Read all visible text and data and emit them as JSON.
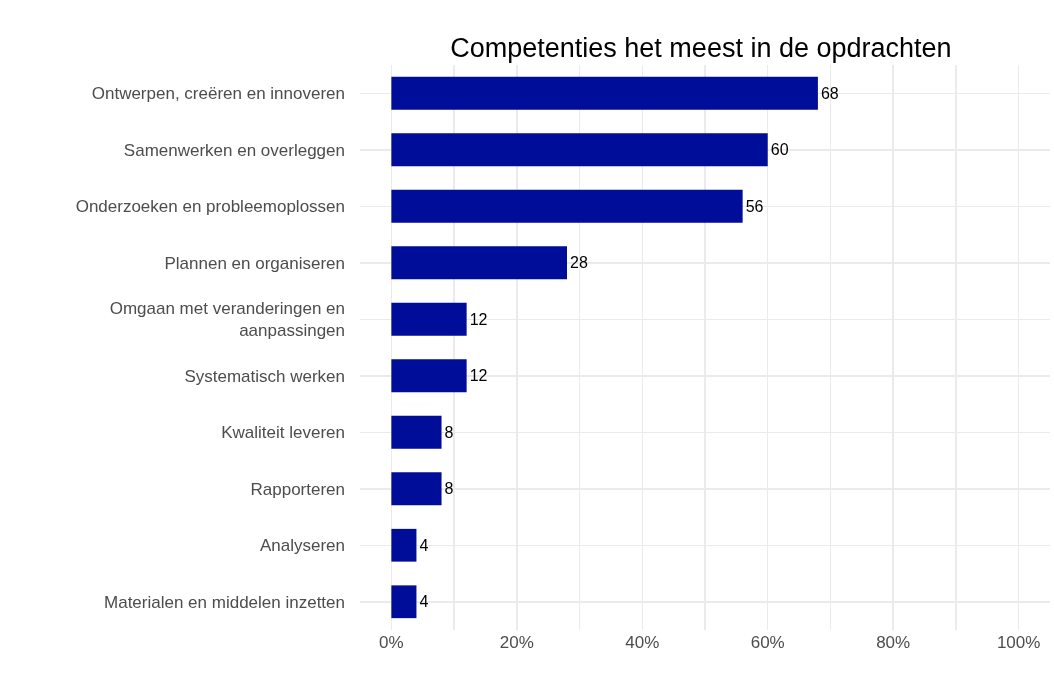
{
  "chart_data": {
    "type": "bar",
    "orientation": "horizontal",
    "title": "Competenties het meest in de opdrachten",
    "categories": [
      "Ontwerpen, creëren en innoveren",
      "Samenwerken en overleggen",
      "Onderzoeken en probleemoplossen",
      "Plannen en organiseren",
      "Omgaan met veranderingen en\naanpassingen",
      "Systematisch werken",
      "Kwaliteit leveren",
      "Rapporteren",
      "Analyseren",
      "Materialen en middelen inzetten"
    ],
    "values": [
      68,
      60,
      56,
      28,
      12,
      12,
      8,
      8,
      4,
      4
    ],
    "color": "#000d99",
    "data_labels": true,
    "xlim": [
      -5,
      105
    ],
    "xticks": [
      {
        "value": 0,
        "label": "0%"
      },
      {
        "value": 10,
        "label": null
      },
      {
        "value": 20,
        "label": "20%"
      },
      {
        "value": 30,
        "label": null
      },
      {
        "value": 40,
        "label": "40%"
      },
      {
        "value": 50,
        "label": null
      },
      {
        "value": 60,
        "label": "60%"
      },
      {
        "value": 70,
        "label": null
      },
      {
        "value": 80,
        "label": "80%"
      },
      {
        "value": 90,
        "label": null
      },
      {
        "value": 100,
        "label": "100%"
      }
    ],
    "grid": true
  }
}
